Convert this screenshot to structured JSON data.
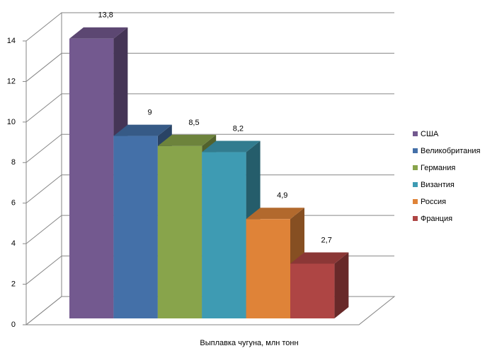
{
  "chart_data": {
    "type": "bar3d",
    "categories": [
      "Выплавка чугуна, млн тонн"
    ],
    "series": [
      {
        "name": "США",
        "color": "#73598f",
        "values": [
          13.8
        ],
        "value_labels": [
          "13,8"
        ]
      },
      {
        "name": "Великобритания",
        "color": "#4470a8",
        "values": [
          9
        ]
      },
      {
        "name": "Германия",
        "color": "#88a44b",
        "values": [
          8.5
        ],
        "value_labels": [
          "8,5"
        ]
      },
      {
        "name": "Византия",
        "color": "#3e9bb3",
        "values": [
          8.2
        ],
        "value_labels": [
          "8,2"
        ]
      },
      {
        "name": "Россия",
        "color": "#df8338",
        "values": [
          4.9
        ],
        "value_labels": [
          "4,9"
        ]
      },
      {
        "name": "Франция",
        "color": "#ae4544",
        "values": [
          2.7
        ],
        "value_labels": [
          "2,7"
        ]
      }
    ],
    "ylim": [
      0,
      14
    ],
    "yticks": [
      0,
      2,
      4,
      6,
      8,
      10,
      12,
      14
    ],
    "grid": true,
    "legend": "right"
  }
}
